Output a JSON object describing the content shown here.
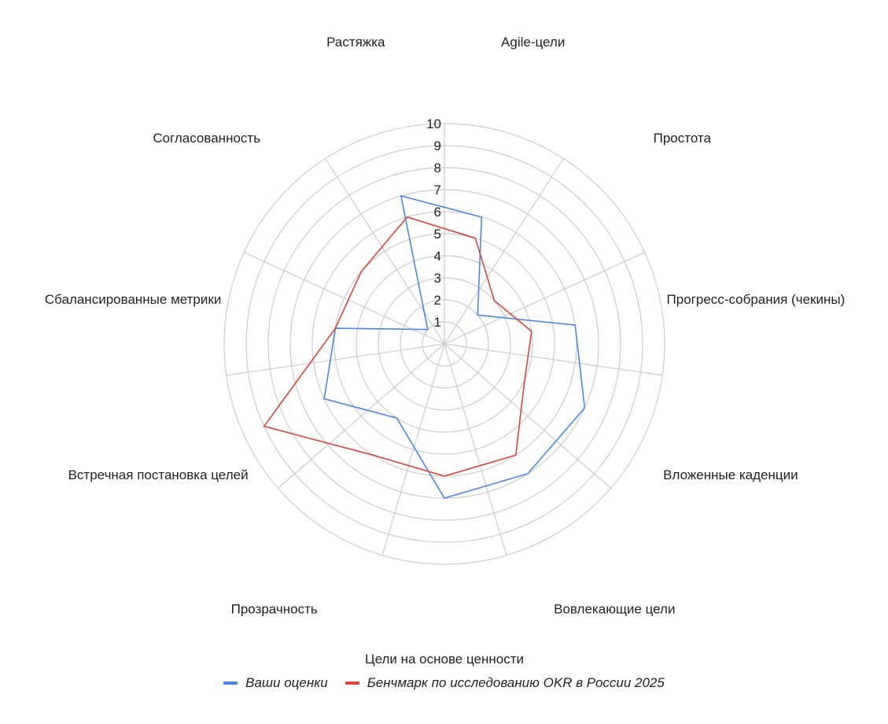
{
  "chart_data": {
    "type": "radar",
    "categories": [
      "Agile-цели",
      "Простота",
      "Прогресс-собрания (чекины)",
      "Вложенные каденции",
      "Вовлекающие цели",
      "Цели на основе ценности",
      "Прозрачность",
      "Встречная постановка целей",
      "Сбалансированные метрики",
      "Согласованность",
      "Растяжка"
    ],
    "rlim": [
      0,
      10
    ],
    "ticks": [
      "1",
      "2",
      "3",
      "4",
      "5",
      "6",
      "7",
      "8",
      "9",
      "10"
    ],
    "grid": true,
    "legend_position": "bottom",
    "series": [
      {
        "name": "Ваши оценки",
        "color": "#4a86e8",
        "values": [
          6,
          2,
          6,
          7,
          7,
          7,
          4,
          6,
          5,
          1,
          7
        ]
      },
      {
        "name": "Бенчмарк по исследованию OKR в России 2025",
        "color": "#db4437",
        "values": [
          5,
          3,
          4,
          4,
          6,
          6,
          6,
          9,
          5,
          5,
          6
        ]
      }
    ]
  }
}
